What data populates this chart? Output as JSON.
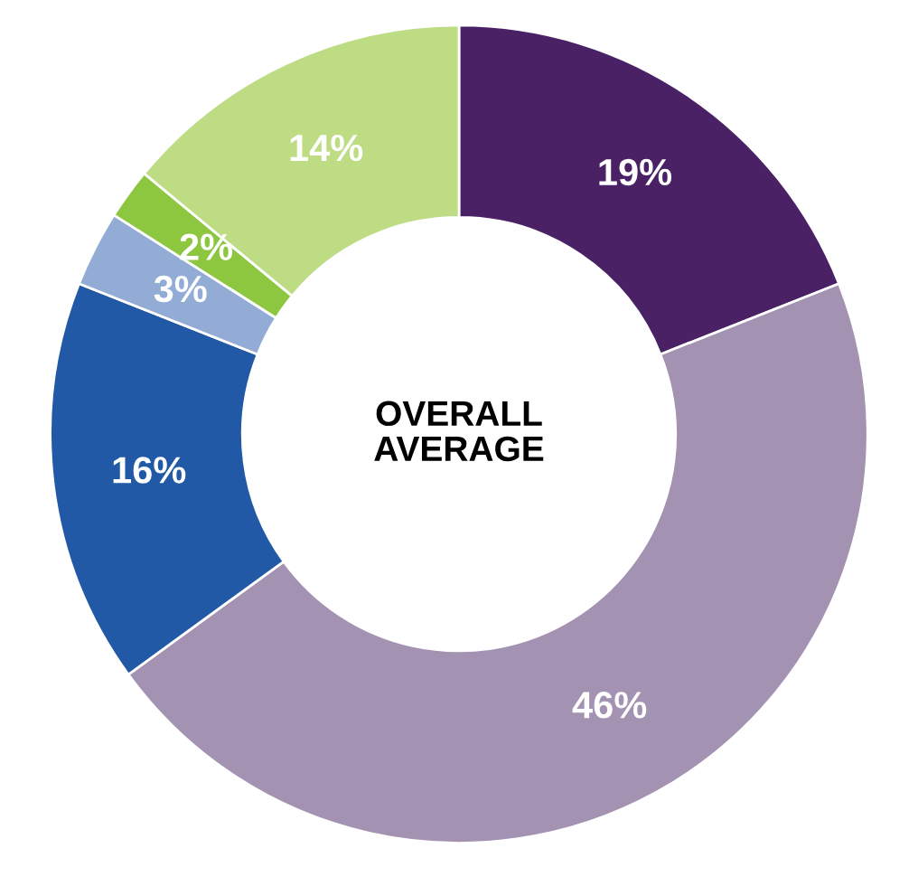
{
  "chart_data": {
    "type": "donut",
    "title": "OVERALL\nAVERAGE",
    "categories": [
      null,
      null,
      null,
      null,
      null,
      null
    ],
    "values": [
      19,
      46,
      16,
      3,
      2,
      14
    ],
    "value_labels": [
      "19%",
      "46%",
      "16%",
      "3%",
      "2%",
      "14%"
    ],
    "colors": [
      "#4b2166",
      "#a492b3",
      "#2259a6",
      "#93acd6",
      "#8dc63f",
      "#bddc83"
    ]
  }
}
